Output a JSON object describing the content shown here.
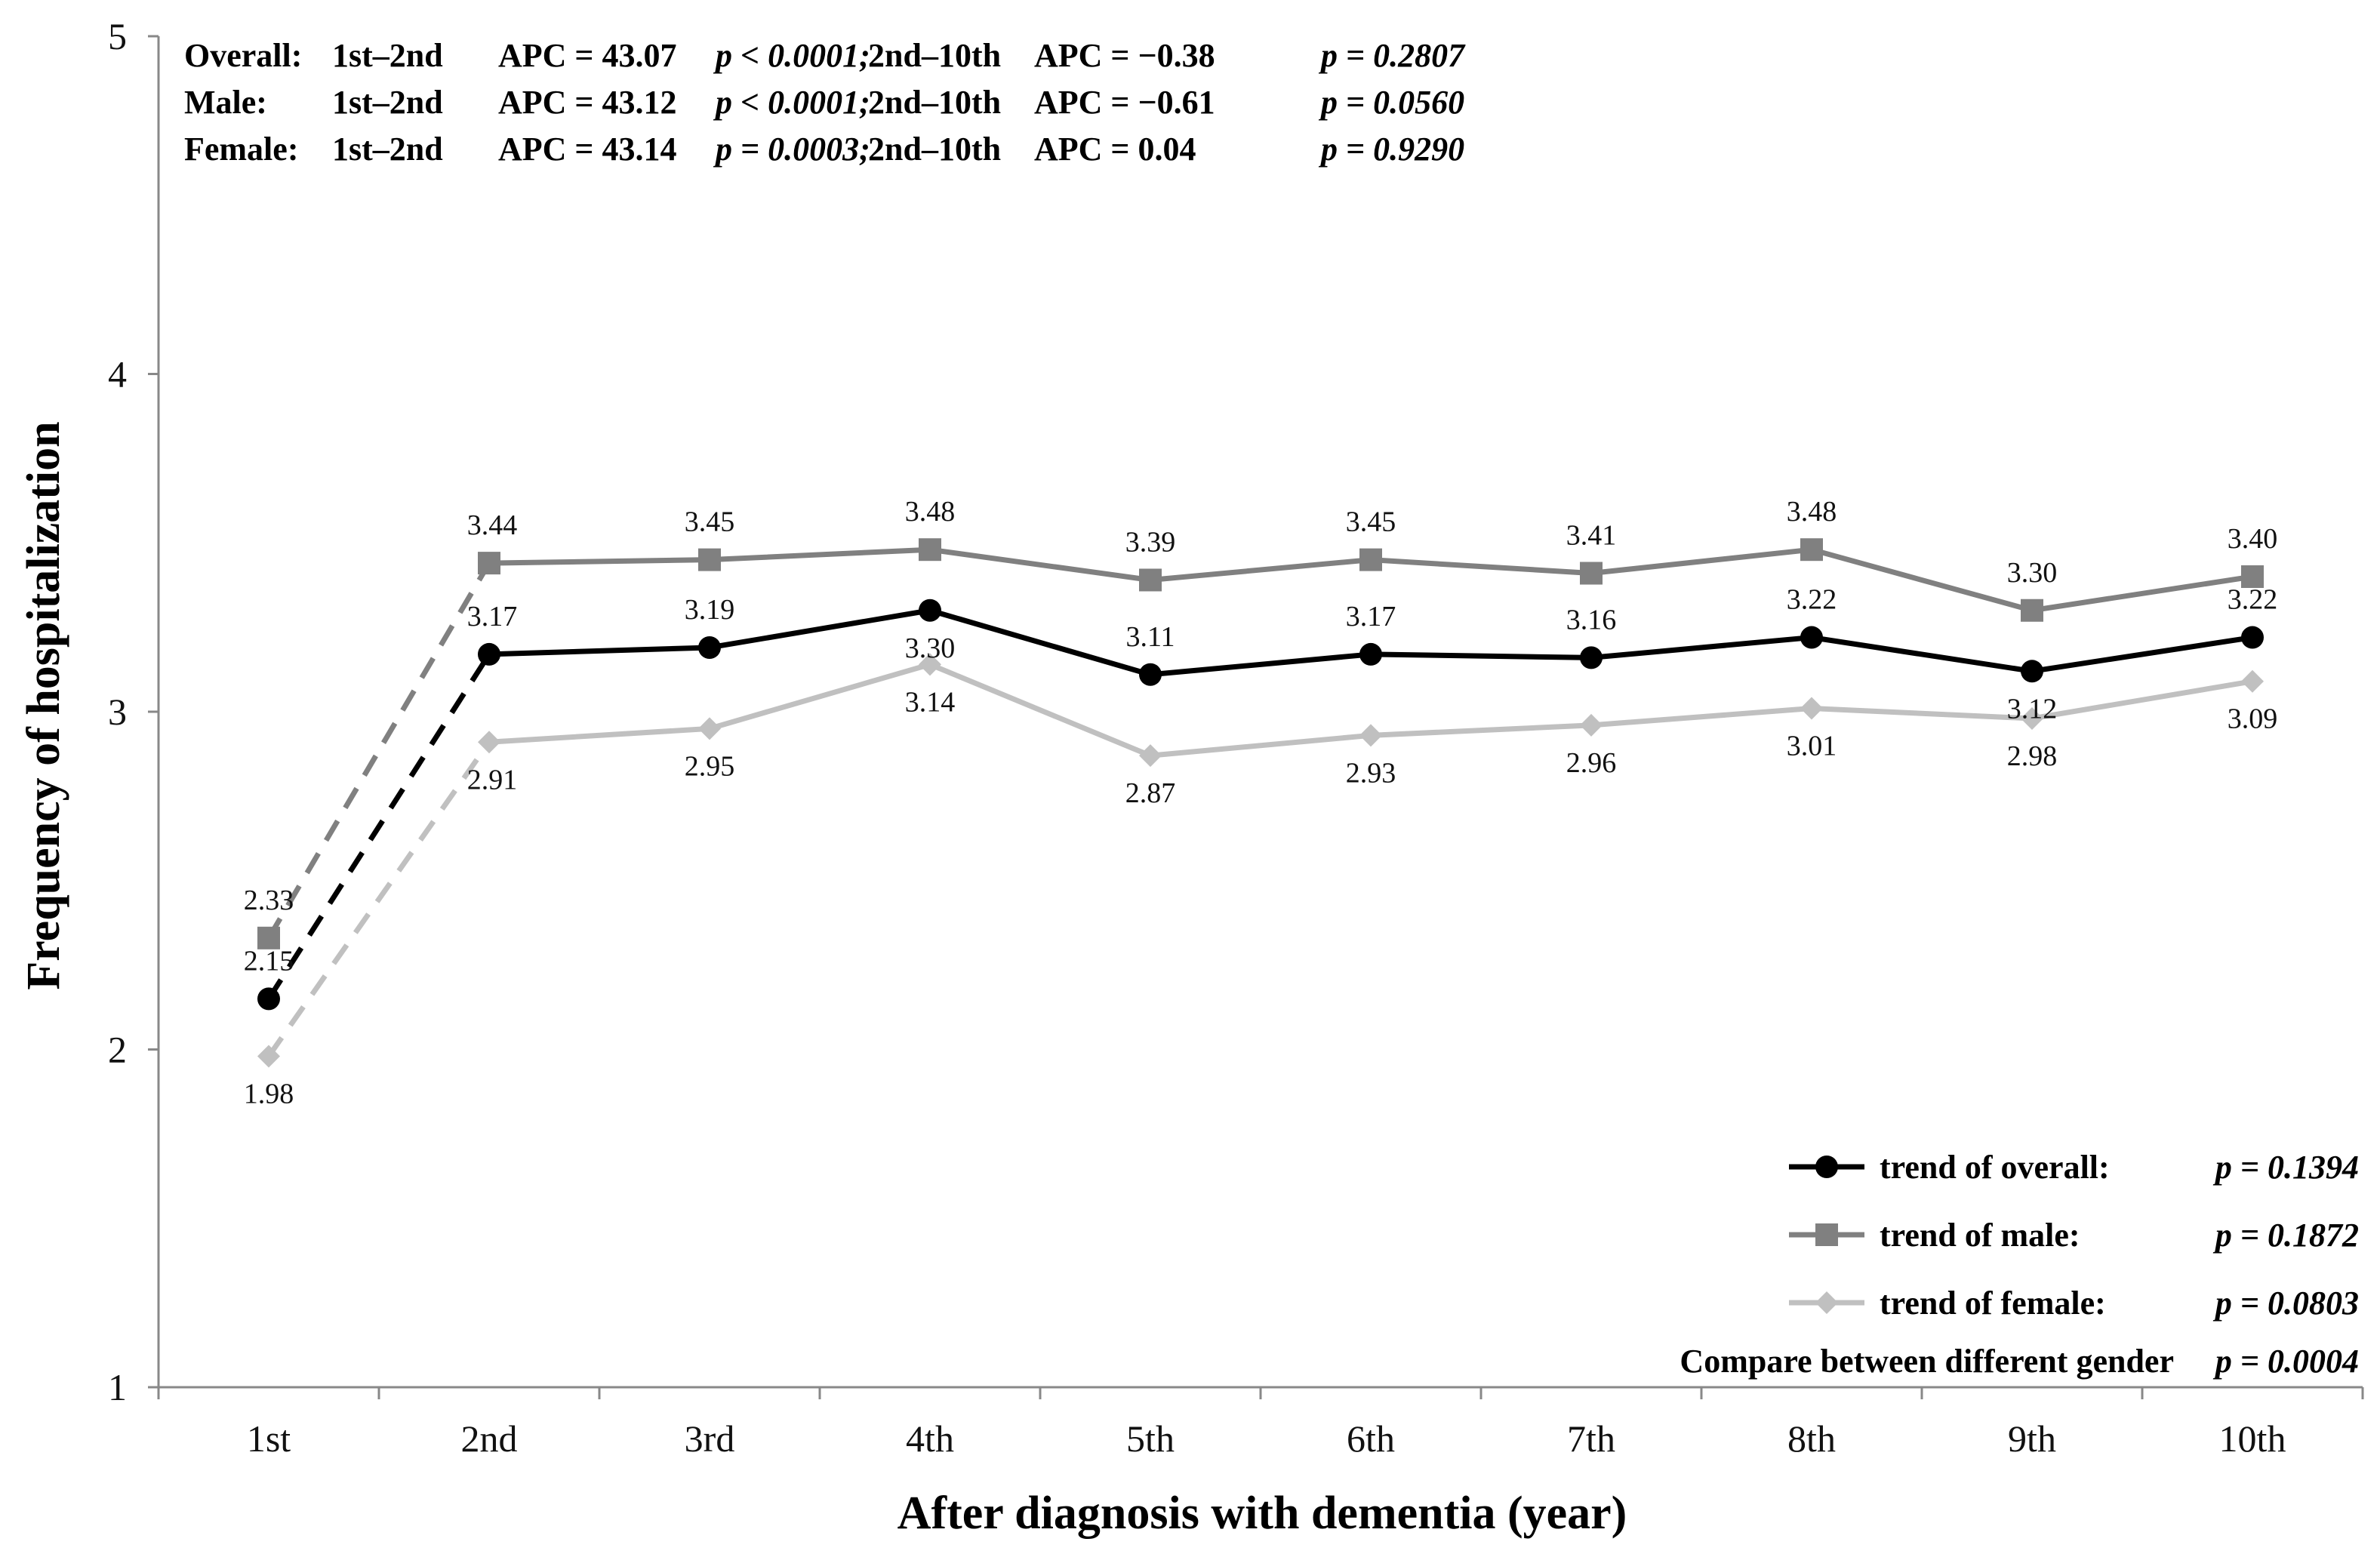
{
  "chart_data": {
    "type": "line",
    "xlabel": "After diagnosis with dementia (year)",
    "ylabel": "Frequency of hospitalization",
    "categories": [
      "1st",
      "2nd",
      "3rd",
      "4th",
      "5th",
      "6th",
      "7th",
      "8th",
      "9th",
      "10th"
    ],
    "ylim": [
      1,
      5
    ],
    "yticks": [
      "1",
      "2",
      "3",
      "4",
      "5"
    ],
    "grid": false,
    "legend_position": "bottom-right",
    "series": [
      {
        "key": "overall",
        "name": "trend of overall:",
        "p_text": "p = 0.1394",
        "color": "#000000",
        "marker": "circle",
        "values": [
          2.15,
          3.17,
          3.19,
          3.3,
          3.11,
          3.17,
          3.16,
          3.22,
          3.12,
          3.22
        ],
        "labels": [
          "2.15",
          "3.17",
          "3.19",
          "3.30",
          "3.11",
          "3.17",
          "3.16",
          "3.22",
          "3.12",
          "3.22"
        ],
        "first_segment": "dashed"
      },
      {
        "key": "male",
        "name": "trend of male:",
        "p_text": "p = 0.1872",
        "color": "#808080",
        "marker": "square",
        "values": [
          2.33,
          3.44,
          3.45,
          3.48,
          3.39,
          3.45,
          3.41,
          3.48,
          3.3,
          3.4
        ],
        "labels": [
          "2.33",
          "3.44",
          "3.45",
          "3.48",
          "3.39",
          "3.45",
          "3.41",
          "3.48",
          "3.30",
          "3.40"
        ],
        "first_segment": "dashed"
      },
      {
        "key": "female",
        "name": "trend of female:",
        "p_text": "p = 0.0803",
        "color": "#c0c0c0",
        "marker": "diamond",
        "values": [
          1.98,
          2.91,
          2.95,
          3.14,
          2.87,
          2.93,
          2.96,
          3.01,
          2.98,
          3.09
        ],
        "labels": [
          "1.98",
          "2.91",
          "2.95",
          "3.14",
          "2.87",
          "2.93",
          "2.96",
          "3.01",
          "2.98",
          "3.09"
        ],
        "first_segment": "dashed"
      }
    ],
    "compare_note": {
      "text": "Compare between different gender",
      "p_text": "p = 0.0004"
    },
    "annotations": [
      {
        "group": "Overall:",
        "seg1": "1st–2nd",
        "apc1": "APC = 43.07",
        "p1": "p < 0.0001;",
        "seg2": "2nd–10th",
        "apc2": "APC = −0.38",
        "p2": "p = 0.2807"
      },
      {
        "group": "Male:",
        "seg1": "1st–2nd",
        "apc1": "APC = 43.12",
        "p1": "p < 0.0001;",
        "seg2": "2nd–10th",
        "apc2": "APC = −0.61",
        "p2": "p = 0.0560"
      },
      {
        "group": "Female:",
        "seg1": "1st–2nd",
        "apc1": "APC = 43.14",
        "p1": "p = 0.0003;",
        "seg2": "2nd–10th",
        "apc2": "APC = 0.04",
        "p2": "p = 0.9290"
      }
    ]
  }
}
